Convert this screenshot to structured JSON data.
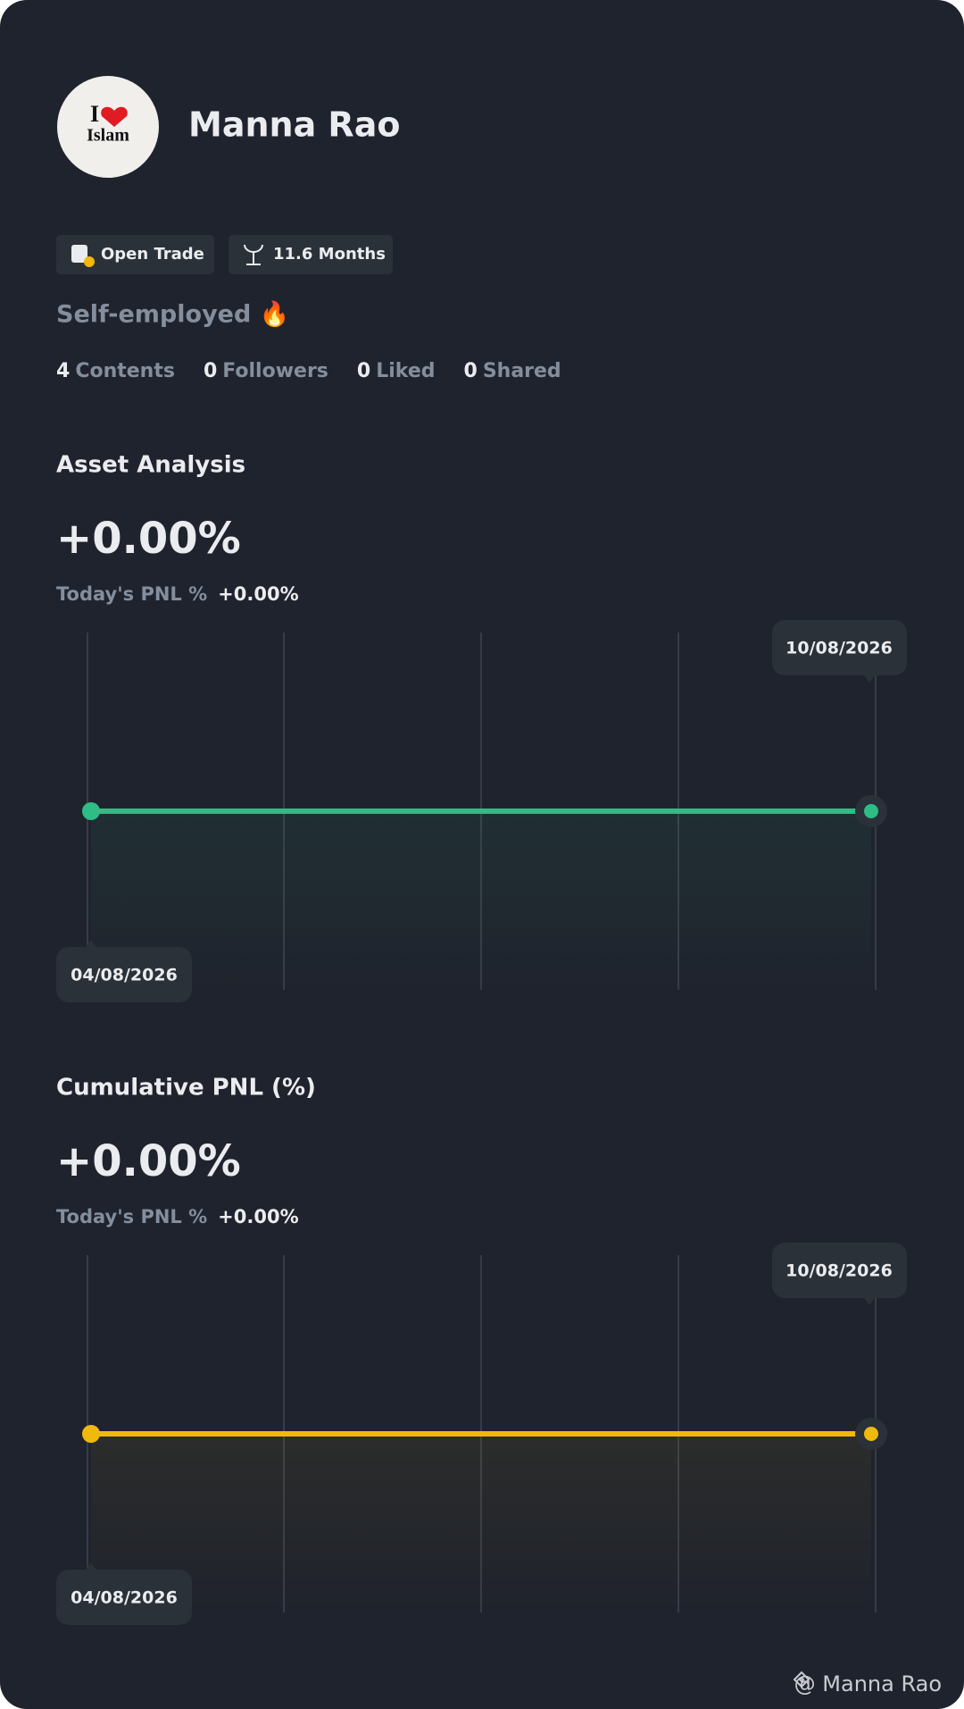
{
  "profile": {
    "avatar": {
      "line1": "I",
      "line2": "Islam"
    },
    "name": "Manna Rao",
    "badges": [
      "Open Trade",
      "11.6 Months"
    ],
    "bio": "Self-employed 🔥",
    "stats": [
      {
        "value": "4",
        "label": "Contents"
      },
      {
        "value": "0",
        "label": "Followers"
      },
      {
        "value": "0",
        "label": "Liked"
      },
      {
        "value": "0",
        "label": "Shared"
      }
    ]
  },
  "sections": [
    {
      "title": "Asset Analysis",
      "value": "+0.00%",
      "today_label": "Today's PNL %",
      "today_value": "+0.00%",
      "chart": {
        "type": "line",
        "x": [
          "04/08/2026",
          "10/08/2026"
        ],
        "values": [
          0,
          0
        ],
        "color": "#2ebd85"
      }
    },
    {
      "title": "Cumulative PNL (%)",
      "value": "+0.00%",
      "today_label": "Today's PNL %",
      "today_value": "+0.00%",
      "chart": {
        "type": "line",
        "x": [
          "04/08/2026",
          "10/08/2026"
        ],
        "values": [
          0,
          0
        ],
        "color": "#f0b90b"
      }
    }
  ],
  "watermark": "@ Manna Rao"
}
